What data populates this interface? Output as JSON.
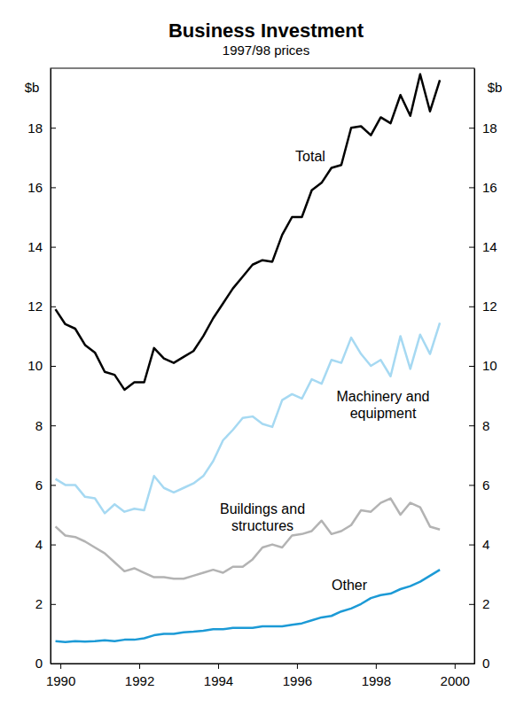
{
  "chart_data": {
    "type": "line",
    "title": "Business Investment",
    "subtitle": "1997/98 prices",
    "ylabel": "$b",
    "x": [
      1989.875,
      1990.125,
      1990.375,
      1990.625,
      1990.875,
      1991.125,
      1991.375,
      1991.625,
      1991.875,
      1992.125,
      1992.375,
      1992.625,
      1992.875,
      1993.125,
      1993.375,
      1993.625,
      1993.875,
      1994.125,
      1994.375,
      1994.625,
      1994.875,
      1995.125,
      1995.375,
      1995.625,
      1995.875,
      1996.125,
      1996.375,
      1996.625,
      1996.875,
      1997.125,
      1997.375,
      1997.625,
      1997.875,
      1998.125,
      1998.375,
      1998.625,
      1998.875,
      1999.125,
      1999.375,
      1999.625
    ],
    "xlim": [
      1989.75,
      2000.5
    ],
    "xticks": [
      1990,
      1992,
      1994,
      1996,
      1998,
      2000
    ],
    "ylim": [
      0,
      20
    ],
    "yticks": [
      0,
      2,
      4,
      6,
      8,
      10,
      12,
      14,
      16,
      18
    ],
    "grid": false,
    "series": [
      {
        "name": "Total",
        "color": "#000000",
        "values": [
          11.9,
          11.4,
          11.25,
          10.7,
          10.45,
          9.8,
          9.7,
          9.2,
          9.45,
          9.45,
          10.6,
          10.25,
          10.1,
          10.3,
          10.5,
          11.0,
          11.6,
          12.1,
          12.6,
          13.0,
          13.4,
          13.55,
          13.5,
          14.4,
          15.0,
          15.0,
          15.9,
          16.15,
          16.65,
          16.75,
          18.0,
          18.05,
          17.75,
          18.35,
          18.15,
          19.1,
          18.4,
          19.8,
          18.55,
          19.6
        ]
      },
      {
        "name": "Machinery and\nequipment",
        "color": "#a6d9f2",
        "values": [
          6.2,
          6.0,
          6.0,
          5.6,
          5.55,
          5.05,
          5.35,
          5.1,
          5.2,
          5.15,
          6.3,
          5.9,
          5.75,
          5.9,
          6.05,
          6.3,
          6.8,
          7.5,
          7.85,
          8.25,
          8.3,
          8.05,
          7.95,
          8.85,
          9.05,
          8.9,
          9.55,
          9.4,
          10.2,
          10.1,
          10.95,
          10.4,
          10.0,
          10.2,
          9.65,
          11.0,
          9.9,
          11.05,
          10.4,
          11.45
        ]
      },
      {
        "name": "Buildings and\nstructures",
        "color": "#b3b3b3",
        "values": [
          4.6,
          4.3,
          4.25,
          4.1,
          3.9,
          3.7,
          3.4,
          3.1,
          3.2,
          3.05,
          2.9,
          2.9,
          2.85,
          2.85,
          2.95,
          3.05,
          3.15,
          3.05,
          3.25,
          3.25,
          3.5,
          3.9,
          4.0,
          3.9,
          4.3,
          4.35,
          4.45,
          4.8,
          4.35,
          4.45,
          4.65,
          5.15,
          5.1,
          5.4,
          5.55,
          5.0,
          5.4,
          5.25,
          4.6,
          4.5
        ]
      },
      {
        "name": "Other",
        "color": "#1c9ad6",
        "values": [
          0.75,
          0.72,
          0.75,
          0.74,
          0.75,
          0.78,
          0.75,
          0.8,
          0.8,
          0.85,
          0.95,
          1.0,
          1.0,
          1.05,
          1.07,
          1.1,
          1.15,
          1.15,
          1.2,
          1.2,
          1.2,
          1.25,
          1.25,
          1.25,
          1.3,
          1.35,
          1.45,
          1.55,
          1.6,
          1.75,
          1.85,
          2.0,
          2.2,
          2.3,
          2.35,
          2.5,
          2.6,
          2.75,
          2.95,
          3.15
        ]
      }
    ]
  }
}
